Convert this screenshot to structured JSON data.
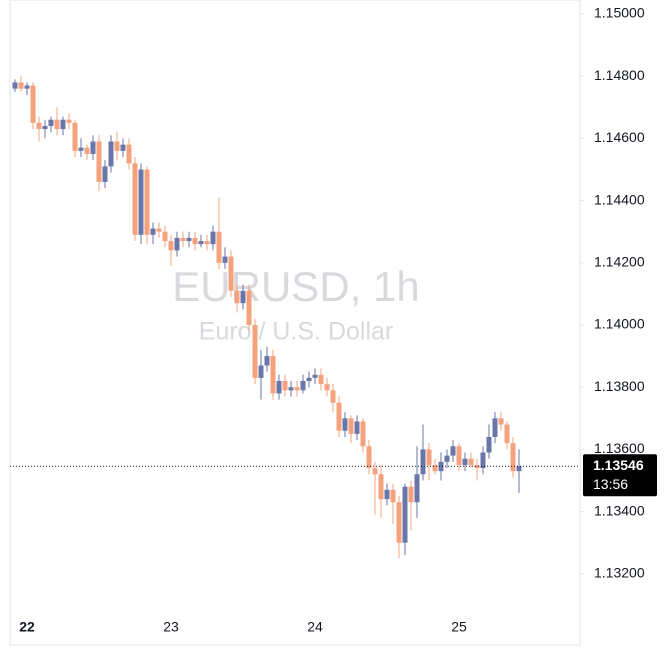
{
  "chart_data": {
    "type": "candlestick",
    "title": "EURUSD, 1h",
    "subtitle": "Euro / U.S. Dollar",
    "categories": [
      null,
      null,
      "22",
      null,
      null,
      null,
      null,
      null,
      null,
      null,
      null,
      null,
      null,
      null,
      null,
      null,
      null,
      null,
      null,
      null,
      null,
      null,
      null,
      null,
      null,
      null,
      "23",
      null,
      null,
      null,
      null,
      null,
      null,
      null,
      null,
      null,
      null,
      null,
      null,
      null,
      null,
      null,
      null,
      null,
      null,
      null,
      null,
      null,
      null,
      null,
      "24",
      null,
      null,
      null,
      null,
      null,
      null,
      null,
      null,
      null,
      null,
      null,
      null,
      null,
      null,
      null,
      null,
      null,
      null,
      null,
      null,
      null,
      null,
      null,
      "25",
      null,
      null,
      null,
      null,
      null,
      null,
      null,
      null,
      null,
      null
    ],
    "open": [
      1.1476,
      1.1478,
      1.1476,
      1.1477,
      1.1465,
      1.1463,
      1.1464,
      1.1466,
      1.1463,
      1.1466,
      1.1465,
      1.1456,
      1.1457,
      1.1455,
      1.1459,
      1.1446,
      1.1451,
      1.1459,
      1.1456,
      1.1458,
      1.1452,
      1.1429,
      1.145,
      1.1429,
      1.1431,
      1.143,
      1.1427,
      1.1424,
      1.1428,
      1.1427,
      1.1428,
      1.1426,
      1.1427,
      1.1426,
      1.143,
      1.142,
      1.1422,
      1.1411,
      1.1407,
      1.1411,
      1.14,
      1.1383,
      1.1387,
      1.139,
      1.1378,
      1.1382,
      1.1379,
      1.138,
      1.1379,
      1.1382,
      1.1383,
      1.1384,
      1.1381,
      1.1379,
      1.1375,
      1.1366,
      1.137,
      1.1365,
      1.1369,
      1.1361,
      1.1354,
      1.1352,
      1.1344,
      1.1347,
      1.1343,
      1.133,
      1.1348,
      1.1343,
      1.1352,
      1.136,
      1.1355,
      1.1353,
      1.1356,
      1.1358,
      1.1361,
      1.1355,
      1.1357,
      1.1355,
      1.1354,
      1.1359,
      1.1364,
      1.137,
      1.1368,
      1.1362,
      1.1353
    ],
    "high": [
      1.1479,
      1.148,
      1.1478,
      1.1478,
      1.1467,
      1.1466,
      1.1467,
      1.147,
      1.1467,
      1.1468,
      1.1466,
      1.146,
      1.1458,
      1.1461,
      1.1461,
      1.1453,
      1.1461,
      1.1462,
      1.146,
      1.146,
      1.1454,
      1.1452,
      1.1451,
      1.1433,
      1.1433,
      1.1432,
      1.1429,
      1.143,
      1.143,
      1.143,
      1.143,
      1.1429,
      1.1429,
      1.1432,
      1.1441,
      1.1425,
      1.1424,
      1.1413,
      1.1413,
      1.1413,
      1.1402,
      1.1392,
      1.1393,
      1.1392,
      1.1384,
      1.1384,
      1.1382,
      1.1382,
      1.1384,
      1.1385,
      1.1386,
      1.1386,
      1.1383,
      1.1381,
      1.1377,
      1.1372,
      1.1371,
      1.1371,
      1.137,
      1.1363,
      1.1356,
      1.1355,
      1.1349,
      1.1349,
      1.1345,
      1.1349,
      1.135,
      1.1361,
      1.1368,
      1.1362,
      1.1357,
      1.1359,
      1.136,
      1.1363,
      1.1362,
      1.1359,
      1.1359,
      1.1357,
      1.1361,
      1.1368,
      1.1372,
      1.1372,
      1.1369,
      1.1364,
      1.136
    ],
    "low": [
      1.1475,
      1.1475,
      1.1474,
      1.1463,
      1.1459,
      1.146,
      1.1462,
      1.1461,
      1.1461,
      1.1463,
      1.1454,
      1.1454,
      1.1453,
      1.1453,
      1.1443,
      1.1444,
      1.1449,
      1.1453,
      1.1454,
      1.145,
      1.1427,
      1.1426,
      1.1426,
      1.1426,
      1.1428,
      1.1425,
      1.1419,
      1.1422,
      1.1425,
      1.1425,
      1.1424,
      1.1425,
      1.1424,
      1.1424,
      1.1418,
      1.1418,
      1.1409,
      1.1404,
      1.1405,
      1.1398,
      1.1381,
      1.1376,
      1.1385,
      1.1376,
      1.1376,
      1.1377,
      1.1377,
      1.1377,
      1.1378,
      1.138,
      1.1381,
      1.1379,
      1.1377,
      1.1372,
      1.1364,
      1.1364,
      1.1362,
      1.1363,
      1.1359,
      1.1352,
      1.1339,
      1.1338,
      1.1342,
      1.1336,
      1.1325,
      1.1326,
      1.1334,
      1.1338,
      1.135,
      1.135,
      1.1352,
      1.135,
      1.1354,
      1.1356,
      1.1353,
      1.1353,
      1.1354,
      1.135,
      1.1352,
      1.1357,
      1.1362,
      1.1366,
      1.136,
      1.1351,
      1.1346
    ],
    "close": [
      1.1478,
      1.1476,
      1.1477,
      1.1465,
      1.1463,
      1.1464,
      1.1466,
      1.1463,
      1.1466,
      1.1465,
      1.1456,
      1.1457,
      1.1455,
      1.1459,
      1.1446,
      1.1451,
      1.1459,
      1.1456,
      1.1458,
      1.1452,
      1.1429,
      1.145,
      1.1429,
      1.1431,
      1.143,
      1.1427,
      1.1424,
      1.1428,
      1.1427,
      1.1428,
      1.1426,
      1.1427,
      1.1426,
      1.143,
      1.142,
      1.1422,
      1.1411,
      1.1407,
      1.1411,
      1.14,
      1.1383,
      1.1387,
      1.139,
      1.1378,
      1.1382,
      1.1379,
      1.138,
      1.1379,
      1.1382,
      1.1383,
      1.1384,
      1.1381,
      1.1379,
      1.1375,
      1.1366,
      1.137,
      1.1365,
      1.1369,
      1.1361,
      1.1354,
      1.1352,
      1.1344,
      1.1347,
      1.1343,
      1.133,
      1.1348,
      1.1343,
      1.1352,
      1.136,
      1.1355,
      1.1353,
      1.1356,
      1.1358,
      1.1361,
      1.1355,
      1.1357,
      1.1355,
      1.1354,
      1.1359,
      1.1364,
      1.137,
      1.1368,
      1.1362,
      1.1353,
      1.13546
    ],
    "up_color": "#6b76a8",
    "down_color": "#f5a27c",
    "last_price": 1.13546,
    "countdown": "13:56",
    "ylim": [
      1.1297,
      1.15
    ],
    "yticks": [
      {
        "value": 1.132,
        "label": "1.13200"
      },
      {
        "value": 1.134,
        "label": "1.13400"
      },
      {
        "value": 1.136,
        "label": "1.13600"
      },
      {
        "value": 1.138,
        "label": "1.13800"
      },
      {
        "value": 1.14,
        "label": "1.14000"
      },
      {
        "value": 1.142,
        "label": "1.14200"
      },
      {
        "value": 1.144,
        "label": "1.14400"
      },
      {
        "value": 1.146,
        "label": "1.14600"
      },
      {
        "value": 1.148,
        "label": "1.14800"
      },
      {
        "value": 1.15,
        "label": "1.15000"
      }
    ],
    "grid": false
  }
}
